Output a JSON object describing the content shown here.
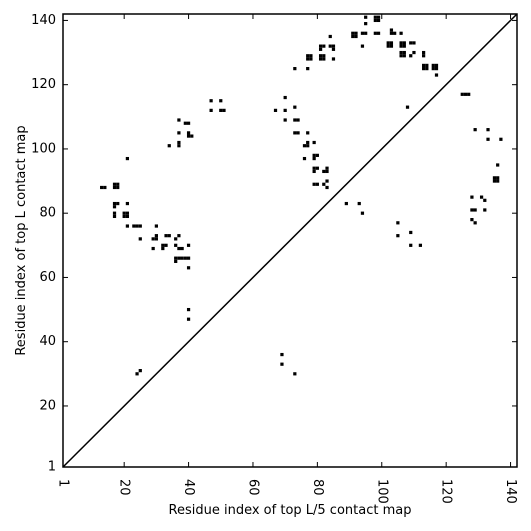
{
  "chart_data": {
    "type": "scatter",
    "xlabel": "Residue index of top L/5 contact map",
    "ylabel": "Residue index of top L contact map",
    "xlim": [
      1,
      142
    ],
    "ylim": [
      1,
      142
    ],
    "xticks": [
      1,
      20,
      40,
      60,
      80,
      100,
      120,
      140
    ],
    "yticks": [
      1,
      20,
      40,
      60,
      80,
      100,
      120,
      140
    ],
    "x_tick_rotation": -90,
    "grid": false,
    "diagonal": true,
    "marker": "square",
    "colors": {
      "marker": "#000000",
      "axes": "#000000",
      "background": "#ffffff"
    },
    "upper_left_points": [
      [
        13,
        88
      ],
      [
        14,
        88
      ],
      [
        17,
        89
      ],
      [
        18,
        89
      ],
      [
        17,
        88
      ],
      [
        18,
        88
      ],
      [
        17,
        83
      ],
      [
        18,
        83
      ],
      [
        17,
        82
      ],
      [
        17,
        80
      ],
      [
        17,
        79
      ],
      [
        21,
        97
      ],
      [
        20,
        80
      ],
      [
        21,
        80
      ],
      [
        20,
        79
      ],
      [
        21,
        79
      ],
      [
        21,
        83
      ],
      [
        21,
        76
      ],
      [
        23,
        76
      ],
      [
        24,
        76
      ],
      [
        25,
        76
      ],
      [
        25,
        72
      ],
      [
        29,
        72
      ],
      [
        30,
        72
      ],
      [
        30,
        76
      ],
      [
        30,
        73
      ],
      [
        32,
        70
      ],
      [
        33,
        70
      ],
      [
        32,
        69
      ],
      [
        33,
        73
      ],
      [
        34,
        73
      ],
      [
        34,
        101
      ],
      [
        29,
        69
      ],
      [
        37,
        109
      ],
      [
        37,
        105
      ],
      [
        37,
        102
      ],
      [
        37,
        101
      ],
      [
        39,
        108
      ],
      [
        40,
        108
      ],
      [
        40,
        105
      ],
      [
        40,
        104
      ],
      [
        41,
        104
      ],
      [
        36,
        72
      ],
      [
        37,
        73
      ],
      [
        36,
        70
      ],
      [
        37,
        69
      ],
      [
        38,
        69
      ],
      [
        36,
        66
      ],
      [
        37,
        66
      ],
      [
        36,
        65
      ],
      [
        38,
        66
      ],
      [
        39,
        66
      ],
      [
        40,
        66
      ],
      [
        40,
        70
      ],
      [
        40,
        63
      ],
      [
        40,
        50
      ],
      [
        40,
        47
      ],
      [
        24,
        30
      ],
      [
        25,
        31
      ],
      [
        47,
        115
      ],
      [
        47,
        112
      ],
      [
        50,
        115
      ],
      [
        50,
        112
      ],
      [
        51,
        112
      ],
      [
        67,
        112
      ],
      [
        70,
        116
      ],
      [
        70,
        112
      ],
      [
        70,
        109
      ],
      [
        73,
        113
      ],
      [
        73,
        109
      ],
      [
        74,
        109
      ],
      [
        73,
        105
      ],
      [
        74,
        105
      ],
      [
        73,
        125
      ],
      [
        77,
        125
      ],
      [
        77,
        105
      ],
      [
        77,
        102
      ],
      [
        76,
        101
      ],
      [
        77,
        101
      ],
      [
        76,
        97
      ],
      [
        79,
        102
      ],
      [
        79,
        98
      ],
      [
        80,
        98
      ],
      [
        79,
        97
      ],
      [
        79,
        94
      ],
      [
        80,
        94
      ],
      [
        79,
        93
      ],
      [
        79,
        89
      ],
      [
        80,
        89
      ],
      [
        82,
        89
      ],
      [
        83,
        88
      ],
      [
        83,
        90
      ],
      [
        82,
        93
      ],
      [
        83,
        93
      ],
      [
        83,
        94
      ],
      [
        77,
        129
      ],
      [
        78,
        129
      ],
      [
        77,
        128
      ],
      [
        78,
        128
      ],
      [
        81,
        132
      ],
      [
        82,
        132
      ],
      [
        81,
        131
      ],
      [
        81,
        129
      ],
      [
        82,
        129
      ],
      [
        81,
        128
      ],
      [
        82,
        128
      ],
      [
        84,
        135
      ],
      [
        84,
        132
      ],
      [
        85,
        132
      ],
      [
        85,
        131
      ],
      [
        85,
        128
      ],
      [
        91,
        136
      ],
      [
        92,
        136
      ],
      [
        91,
        135
      ],
      [
        92,
        135
      ],
      [
        94,
        136
      ],
      [
        95,
        136
      ],
      [
        94,
        132
      ],
      [
        95,
        141
      ],
      [
        95,
        139
      ],
      [
        98,
        141
      ],
      [
        99,
        141
      ],
      [
        98,
        140
      ],
      [
        99,
        140
      ],
      [
        98,
        136
      ],
      [
        99,
        136
      ],
      [
        102,
        133
      ],
      [
        103,
        133
      ],
      [
        102,
        132
      ],
      [
        103,
        132
      ],
      [
        103,
        137
      ],
      [
        103,
        136
      ],
      [
        104,
        136
      ],
      [
        106,
        136
      ],
      [
        106,
        133
      ],
      [
        107,
        133
      ],
      [
        106,
        132
      ],
      [
        107,
        132
      ],
      [
        106,
        130
      ],
      [
        107,
        130
      ],
      [
        106,
        129
      ],
      [
        107,
        129
      ],
      [
        109,
        133
      ],
      [
        110,
        133
      ],
      [
        109,
        129
      ],
      [
        110,
        130
      ],
      [
        108,
        113
      ],
      [
        113,
        130
      ],
      [
        113,
        129
      ],
      [
        113,
        126
      ],
      [
        114,
        126
      ],
      [
        113,
        125
      ],
      [
        114,
        125
      ],
      [
        116,
        126
      ],
      [
        117,
        126
      ],
      [
        116,
        125
      ],
      [
        117,
        125
      ],
      [
        117,
        123
      ],
      [
        89,
        83
      ],
      [
        93,
        83
      ],
      [
        94,
        80
      ],
      [
        69,
        36
      ],
      [
        69,
        33
      ],
      [
        73,
        30
      ]
    ],
    "lower_right_points": [
      [
        105,
        77
      ],
      [
        105,
        73
      ],
      [
        109,
        74
      ],
      [
        109,
        70
      ],
      [
        112,
        70
      ],
      [
        125,
        117
      ],
      [
        126,
        117
      ],
      [
        127,
        117
      ],
      [
        129,
        106
      ],
      [
        133,
        106
      ],
      [
        133,
        103
      ],
      [
        137,
        103
      ],
      [
        128,
        85
      ],
      [
        131,
        85
      ],
      [
        132,
        84
      ],
      [
        128,
        81
      ],
      [
        129,
        81
      ],
      [
        132,
        81
      ],
      [
        128,
        78
      ],
      [
        129,
        77
      ],
      [
        135,
        91
      ],
      [
        136,
        91
      ],
      [
        135,
        90
      ],
      [
        136,
        90
      ],
      [
        136,
        95
      ]
    ]
  }
}
